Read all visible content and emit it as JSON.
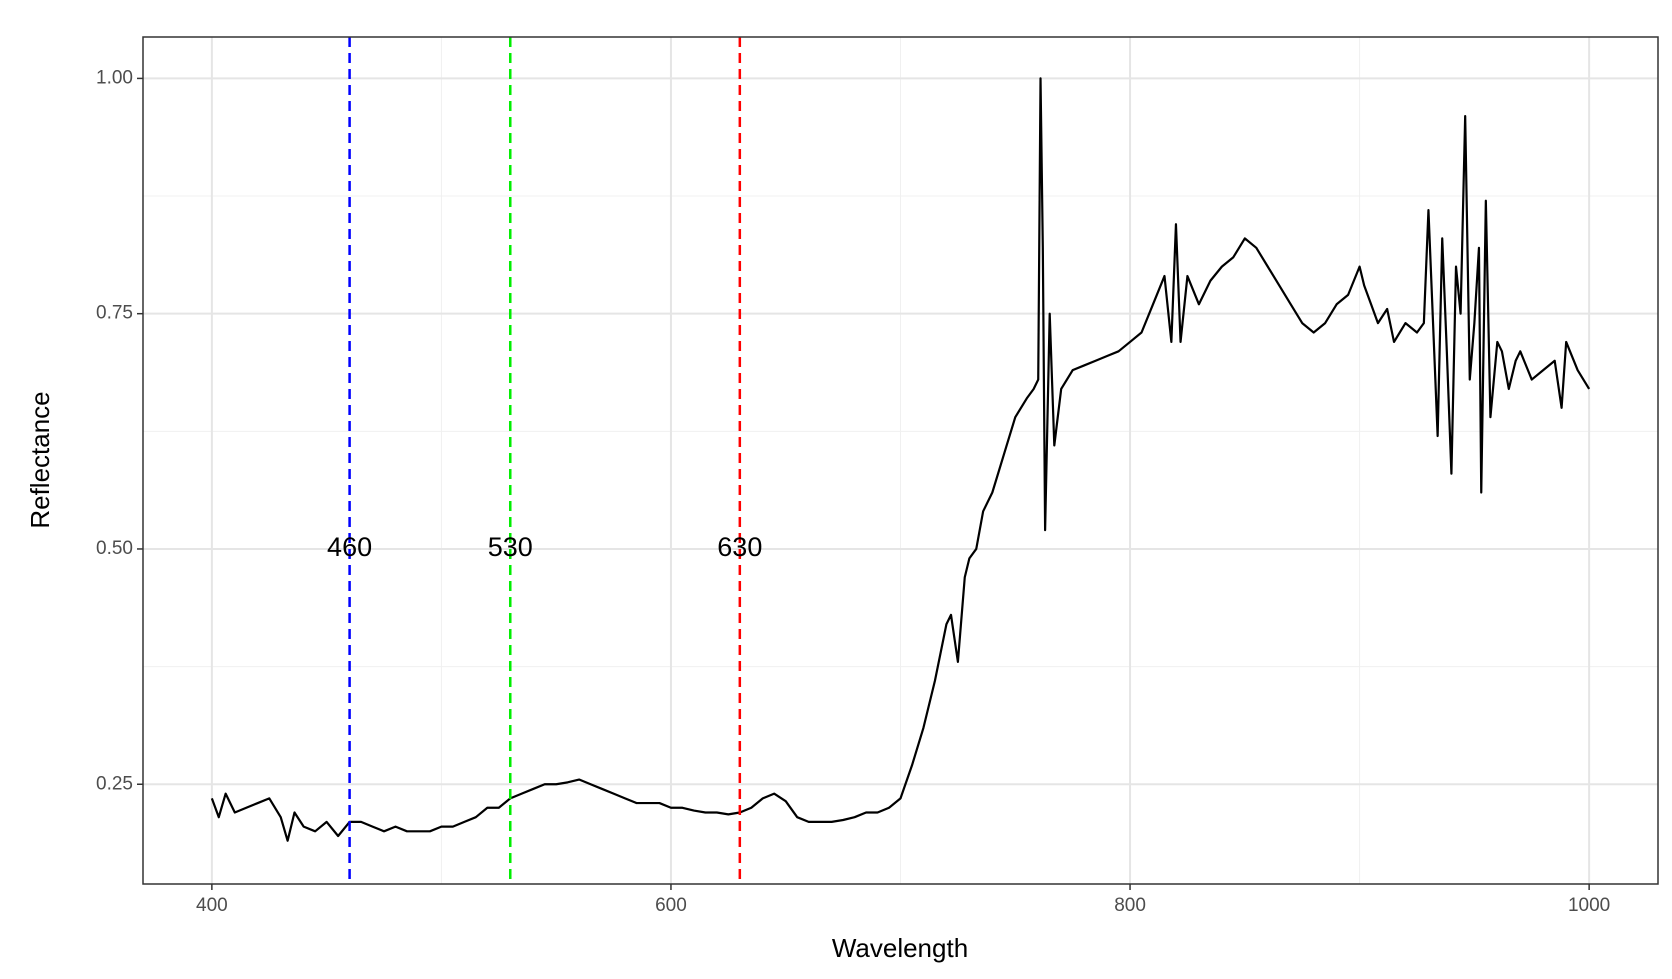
{
  "chart_data": {
    "type": "line",
    "x_label": "Wavelength",
    "y_label": "Reflectance",
    "xlim": [
      370,
      1030
    ],
    "ylim": [
      0.144,
      1.044
    ],
    "xticks": [
      400,
      600,
      800,
      1000
    ],
    "yticks": [
      {
        "value": 0.25,
        "label": "0.25"
      },
      {
        "value": 0.5,
        "label": "0.50"
      },
      {
        "value": 0.75,
        "label": "0.75"
      },
      {
        "value": 1.0,
        "label": "1.00"
      }
    ],
    "x_minor_grid": [
      500,
      700,
      900
    ],
    "y_minor_grid": [
      0.375,
      0.625,
      0.875
    ],
    "grid": true,
    "series": [
      {
        "color": "#000000",
        "x": [
          400,
          403,
          406,
          410,
          415,
          420,
          425,
          430,
          433,
          436,
          440,
          445,
          450,
          455,
          460,
          465,
          470,
          475,
          480,
          485,
          490,
          495,
          500,
          505,
          510,
          515,
          520,
          525,
          530,
          535,
          540,
          545,
          550,
          555,
          560,
          565,
          570,
          575,
          580,
          585,
          590,
          595,
          600,
          605,
          610,
          615,
          620,
          625,
          630,
          635,
          640,
          645,
          650,
          655,
          660,
          665,
          670,
          675,
          680,
          685,
          690,
          695,
          700,
          705,
          710,
          715,
          720,
          722,
          725,
          728,
          730,
          733,
          736,
          740,
          745,
          750,
          755,
          758,
          760,
          761,
          762,
          763,
          765,
          767,
          770,
          775,
          780,
          785,
          790,
          795,
          800,
          805,
          810,
          815,
          818,
          820,
          822,
          825,
          830,
          835,
          840,
          845,
          850,
          855,
          860,
          865,
          870,
          875,
          880,
          885,
          890,
          895,
          900,
          902,
          905,
          908,
          912,
          915,
          920,
          925,
          928,
          930,
          932,
          934,
          936,
          938,
          940,
          942,
          944,
          946,
          948,
          950,
          952,
          953,
          955,
          957,
          960,
          962,
          965,
          968,
          970,
          975,
          980,
          985,
          988,
          990,
          995,
          1000
        ],
        "values": [
          0.235,
          0.215,
          0.24,
          0.22,
          0.225,
          0.23,
          0.235,
          0.215,
          0.19,
          0.22,
          0.205,
          0.2,
          0.21,
          0.195,
          0.21,
          0.21,
          0.205,
          0.2,
          0.205,
          0.2,
          0.2,
          0.2,
          0.205,
          0.205,
          0.21,
          0.215,
          0.225,
          0.225,
          0.235,
          0.24,
          0.245,
          0.25,
          0.25,
          0.252,
          0.255,
          0.25,
          0.245,
          0.24,
          0.235,
          0.23,
          0.23,
          0.23,
          0.225,
          0.225,
          0.222,
          0.22,
          0.22,
          0.218,
          0.22,
          0.225,
          0.235,
          0.24,
          0.232,
          0.215,
          0.21,
          0.21,
          0.21,
          0.212,
          0.215,
          0.22,
          0.22,
          0.225,
          0.235,
          0.27,
          0.31,
          0.36,
          0.42,
          0.43,
          0.38,
          0.47,
          0.49,
          0.5,
          0.54,
          0.56,
          0.6,
          0.64,
          0.66,
          0.67,
          0.68,
          1.0,
          0.82,
          0.52,
          0.75,
          0.61,
          0.67,
          0.69,
          0.695,
          0.7,
          0.705,
          0.71,
          0.72,
          0.73,
          0.76,
          0.79,
          0.72,
          0.845,
          0.72,
          0.79,
          0.76,
          0.785,
          0.8,
          0.81,
          0.83,
          0.82,
          0.8,
          0.78,
          0.76,
          0.74,
          0.73,
          0.74,
          0.76,
          0.77,
          0.8,
          0.78,
          0.76,
          0.74,
          0.755,
          0.72,
          0.74,
          0.73,
          0.74,
          0.86,
          0.74,
          0.62,
          0.83,
          0.71,
          0.58,
          0.8,
          0.75,
          0.96,
          0.68,
          0.74,
          0.82,
          0.56,
          0.87,
          0.64,
          0.72,
          0.71,
          0.67,
          0.7,
          0.71,
          0.68,
          0.69,
          0.7,
          0.65,
          0.72,
          0.69,
          0.67
        ]
      }
    ],
    "vlines": [
      {
        "x": 460,
        "color": "#0000ff",
        "label_y": 0.5
      },
      {
        "x": 530,
        "color": "#00ee00",
        "label_y": 0.5
      },
      {
        "x": 630,
        "color": "#ff0000",
        "label_y": 0.5
      }
    ]
  }
}
